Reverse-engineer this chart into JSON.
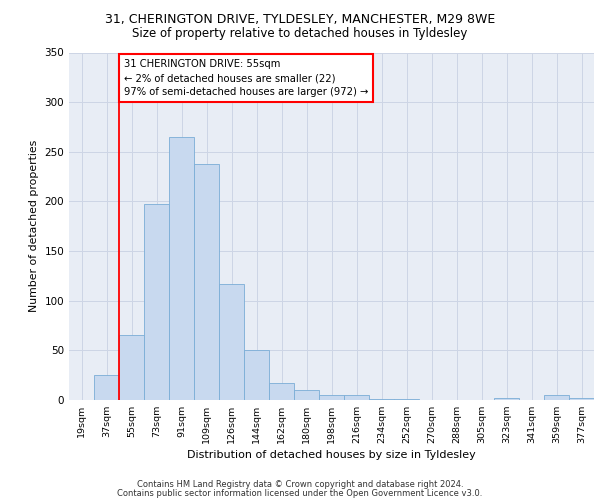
{
  "title1": "31, CHERINGTON DRIVE, TYLDESLEY, MANCHESTER, M29 8WE",
  "title2": "Size of property relative to detached houses in Tyldesley",
  "xlabel": "Distribution of detached houses by size in Tyldesley",
  "ylabel": "Number of detached properties",
  "footnote1": "Contains HM Land Registry data © Crown copyright and database right 2024.",
  "footnote2": "Contains public sector information licensed under the Open Government Licence v3.0.",
  "bin_labels": [
    "19sqm",
    "37sqm",
    "55sqm",
    "73sqm",
    "91sqm",
    "109sqm",
    "126sqm",
    "144sqm",
    "162sqm",
    "180sqm",
    "198sqm",
    "216sqm",
    "234sqm",
    "252sqm",
    "270sqm",
    "288sqm",
    "305sqm",
    "323sqm",
    "341sqm",
    "359sqm",
    "377sqm"
  ],
  "bar_values": [
    0,
    25,
    65,
    197,
    265,
    238,
    117,
    50,
    17,
    10,
    5,
    5,
    1,
    1,
    0,
    0,
    0,
    2,
    0,
    5,
    2
  ],
  "bar_color": "#c8d9ef",
  "bar_edge_color": "#7aadd6",
  "red_line_index": 2,
  "annotation_text": "31 CHERINGTON DRIVE: 55sqm\n← 2% of detached houses are smaller (22)\n97% of semi-detached houses are larger (972) →",
  "annotation_box_color": "white",
  "annotation_box_edge": "red",
  "ylim": [
    0,
    350
  ],
  "yticks": [
    0,
    50,
    100,
    150,
    200,
    250,
    300,
    350
  ],
  "grid_color": "#cdd5e5",
  "bg_color": "#e8edf5"
}
